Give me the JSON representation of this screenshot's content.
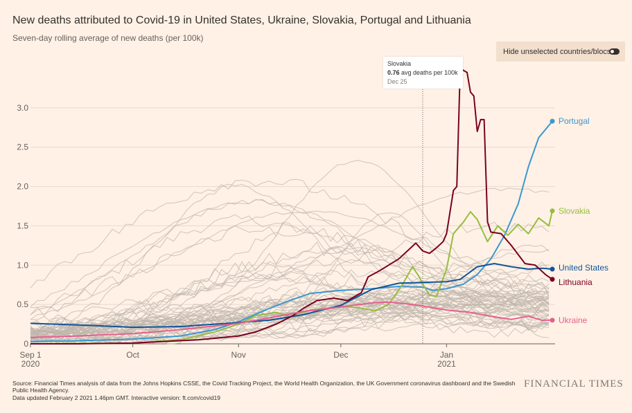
{
  "header": {
    "title": "New deaths attributed to Covid-19 in United States, Ukraine, Slovakia, Portugal and Lithuania",
    "subtitle": "Seven-day rolling average of new deaths (per 100k)"
  },
  "toggle": {
    "label": "Hide unselected countries/blocs",
    "state": "on"
  },
  "tooltip": {
    "country": "Slovakia",
    "value": "0.76",
    "value_suffix": " avg deaths per 100k",
    "date": "Dec 25"
  },
  "footer": {
    "source": "Source: Financial Times analysis of data from the Johns Hopkins CSSE, the Covid Tracking Project, the World Health Organization, the UK Government coronavirus dashboard and the Swedish Public Health Agency.",
    "updated": "Data updated February 2 2021 1.46pm GMT. Interactive version: ft.com/covid19",
    "logo": "FINANCIAL TIMES"
  },
  "chart_data": {
    "type": "line",
    "title": "New deaths attributed to Covid-19 in United States, Ukraine, Slovakia, Portugal and Lithuania",
    "subtitle": "Seven-day rolling average of new deaths (per 100k)",
    "xlabel": "",
    "ylabel": "",
    "x_start": "2020-09-01",
    "x_end": "2021-02-01",
    "ylim": [
      0,
      3.5
    ],
    "yticks": [
      0,
      0.5,
      1.0,
      1.5,
      2.0,
      2.5,
      3.0
    ],
    "ytick_labels": [
      "0",
      "0.5",
      "1.0",
      "1.5",
      "2.0",
      "2.5",
      "3.0"
    ],
    "xticks": [
      {
        "date": "2020-09-01",
        "label": "Sep 1",
        "sublabel": "2020"
      },
      {
        "date": "2020-10-01",
        "label": "Oct",
        "sublabel": ""
      },
      {
        "date": "2020-11-01",
        "label": "Nov",
        "sublabel": ""
      },
      {
        "date": "2020-12-01",
        "label": "Dec",
        "sublabel": ""
      },
      {
        "date": "2021-01-01",
        "label": "Jan",
        "sublabel": "2021"
      }
    ],
    "grid": true,
    "marker_date": "2020-12-25",
    "series": [
      {
        "name": "Portugal",
        "color": "#3a97d1",
        "points": [
          [
            "2020-09-01",
            0.03
          ],
          [
            "2020-09-15",
            0.04
          ],
          [
            "2020-10-01",
            0.06
          ],
          [
            "2020-10-15",
            0.1
          ],
          [
            "2020-10-25",
            0.18
          ],
          [
            "2020-11-01",
            0.28
          ],
          [
            "2020-11-10",
            0.45
          ],
          [
            "2020-11-16",
            0.55
          ],
          [
            "2020-11-22",
            0.64
          ],
          [
            "2020-12-01",
            0.68
          ],
          [
            "2020-12-10",
            0.7
          ],
          [
            "2020-12-18",
            0.73
          ],
          [
            "2020-12-25",
            0.72
          ],
          [
            "2020-12-28",
            0.68
          ],
          [
            "2021-01-01",
            0.7
          ],
          [
            "2021-01-06",
            0.76
          ],
          [
            "2021-01-10",
            0.88
          ],
          [
            "2021-01-14",
            1.08
          ],
          [
            "2021-01-18",
            1.38
          ],
          [
            "2021-01-22",
            1.78
          ],
          [
            "2021-01-25",
            2.25
          ],
          [
            "2021-01-28",
            2.62
          ],
          [
            "2021-02-01",
            2.83
          ]
        ]
      },
      {
        "name": "Slovakia",
        "color": "#96bd40",
        "points": [
          [
            "2020-09-01",
            0.0
          ],
          [
            "2020-10-01",
            0.01
          ],
          [
            "2020-10-15",
            0.05
          ],
          [
            "2020-10-25",
            0.15
          ],
          [
            "2020-11-01",
            0.25
          ],
          [
            "2020-11-06",
            0.36
          ],
          [
            "2020-11-12",
            0.4
          ],
          [
            "2020-11-16",
            0.35
          ],
          [
            "2020-11-22",
            0.43
          ],
          [
            "2020-11-28",
            0.45
          ],
          [
            "2020-12-01",
            0.48
          ],
          [
            "2020-12-06",
            0.46
          ],
          [
            "2020-12-11",
            0.42
          ],
          [
            "2020-12-15",
            0.5
          ],
          [
            "2020-12-19",
            0.75
          ],
          [
            "2020-12-22",
            0.98
          ],
          [
            "2020-12-24",
            0.85
          ],
          [
            "2020-12-25",
            0.76
          ],
          [
            "2020-12-27",
            0.62
          ],
          [
            "2020-12-29",
            0.6
          ],
          [
            "2021-01-01",
            0.95
          ],
          [
            "2021-01-03",
            1.4
          ],
          [
            "2021-01-06",
            1.55
          ],
          [
            "2021-01-08",
            1.68
          ],
          [
            "2021-01-10",
            1.58
          ],
          [
            "2021-01-13",
            1.3
          ],
          [
            "2021-01-16",
            1.5
          ],
          [
            "2021-01-19",
            1.38
          ],
          [
            "2021-01-22",
            1.52
          ],
          [
            "2021-01-25",
            1.4
          ],
          [
            "2021-01-28",
            1.6
          ],
          [
            "2021-01-31",
            1.5
          ],
          [
            "2021-02-01",
            1.69
          ]
        ]
      },
      {
        "name": "United States",
        "color": "#0f5499",
        "points": [
          [
            "2020-09-01",
            0.26
          ],
          [
            "2020-09-15",
            0.24
          ],
          [
            "2020-10-01",
            0.21
          ],
          [
            "2020-10-15",
            0.22
          ],
          [
            "2020-11-01",
            0.27
          ],
          [
            "2020-11-10",
            0.3
          ],
          [
            "2020-11-20",
            0.37
          ],
          [
            "2020-12-01",
            0.49
          ],
          [
            "2020-12-10",
            0.69
          ],
          [
            "2020-12-18",
            0.77
          ],
          [
            "2020-12-25",
            0.78
          ],
          [
            "2021-01-01",
            0.79
          ],
          [
            "2021-01-05",
            0.82
          ],
          [
            "2021-01-10",
            0.98
          ],
          [
            "2021-01-15",
            1.02
          ],
          [
            "2021-01-20",
            0.98
          ],
          [
            "2021-01-25",
            0.95
          ],
          [
            "2021-01-29",
            0.96
          ],
          [
            "2021-02-01",
            0.95
          ]
        ]
      },
      {
        "name": "Lithuania",
        "color": "#79001f",
        "points": [
          [
            "2020-09-01",
            0.0
          ],
          [
            "2020-09-15",
            0.0
          ],
          [
            "2020-10-01",
            0.01
          ],
          [
            "2020-10-10",
            0.03
          ],
          [
            "2020-10-20",
            0.05
          ],
          [
            "2020-10-25",
            0.07
          ],
          [
            "2020-11-01",
            0.1
          ],
          [
            "2020-11-06",
            0.15
          ],
          [
            "2020-11-12",
            0.25
          ],
          [
            "2020-11-17",
            0.36
          ],
          [
            "2020-11-20",
            0.45
          ],
          [
            "2020-11-24",
            0.55
          ],
          [
            "2020-11-29",
            0.58
          ],
          [
            "2020-12-03",
            0.55
          ],
          [
            "2020-12-07",
            0.65
          ],
          [
            "2020-12-09",
            0.85
          ],
          [
            "2020-12-12",
            0.92
          ],
          [
            "2020-12-15",
            1.0
          ],
          [
            "2020-12-18",
            1.08
          ],
          [
            "2020-12-21",
            1.2
          ],
          [
            "2020-12-23",
            1.28
          ],
          [
            "2020-12-25",
            1.18
          ],
          [
            "2020-12-27",
            1.15
          ],
          [
            "2020-12-29",
            1.22
          ],
          [
            "2020-12-31",
            1.3
          ],
          [
            "2021-01-01",
            1.4
          ],
          [
            "2021-01-03",
            1.95
          ],
          [
            "2021-01-04",
            2.0
          ],
          [
            "2021-01-05",
            3.5
          ],
          [
            "2021-01-07",
            3.45
          ],
          [
            "2021-01-08",
            3.2
          ],
          [
            "2021-01-09",
            3.15
          ],
          [
            "2021-01-10",
            2.7
          ],
          [
            "2021-01-11",
            2.85
          ],
          [
            "2021-01-12",
            2.85
          ],
          [
            "2021-01-13",
            1.55
          ],
          [
            "2021-01-14",
            1.42
          ],
          [
            "2021-01-17",
            1.4
          ],
          [
            "2021-01-20",
            1.25
          ],
          [
            "2021-01-24",
            1.02
          ],
          [
            "2021-01-27",
            1.0
          ],
          [
            "2021-01-30",
            0.88
          ],
          [
            "2021-02-01",
            0.82
          ]
        ]
      },
      {
        "name": "Ukraine",
        "color": "#e55f8e",
        "points": [
          [
            "2020-09-01",
            0.08
          ],
          [
            "2020-09-15",
            0.1
          ],
          [
            "2020-10-01",
            0.13
          ],
          [
            "2020-10-15",
            0.18
          ],
          [
            "2020-11-01",
            0.26
          ],
          [
            "2020-11-10",
            0.33
          ],
          [
            "2020-11-20",
            0.41
          ],
          [
            "2020-12-01",
            0.47
          ],
          [
            "2020-12-10",
            0.52
          ],
          [
            "2020-12-15",
            0.53
          ],
          [
            "2020-12-20",
            0.51
          ],
          [
            "2020-12-25",
            0.48
          ],
          [
            "2021-01-01",
            0.43
          ],
          [
            "2021-01-08",
            0.4
          ],
          [
            "2021-01-14",
            0.35
          ],
          [
            "2021-01-20",
            0.31
          ],
          [
            "2021-01-25",
            0.35
          ],
          [
            "2021-01-29",
            0.3
          ],
          [
            "2021-02-01",
            0.3
          ]
        ]
      }
    ]
  }
}
